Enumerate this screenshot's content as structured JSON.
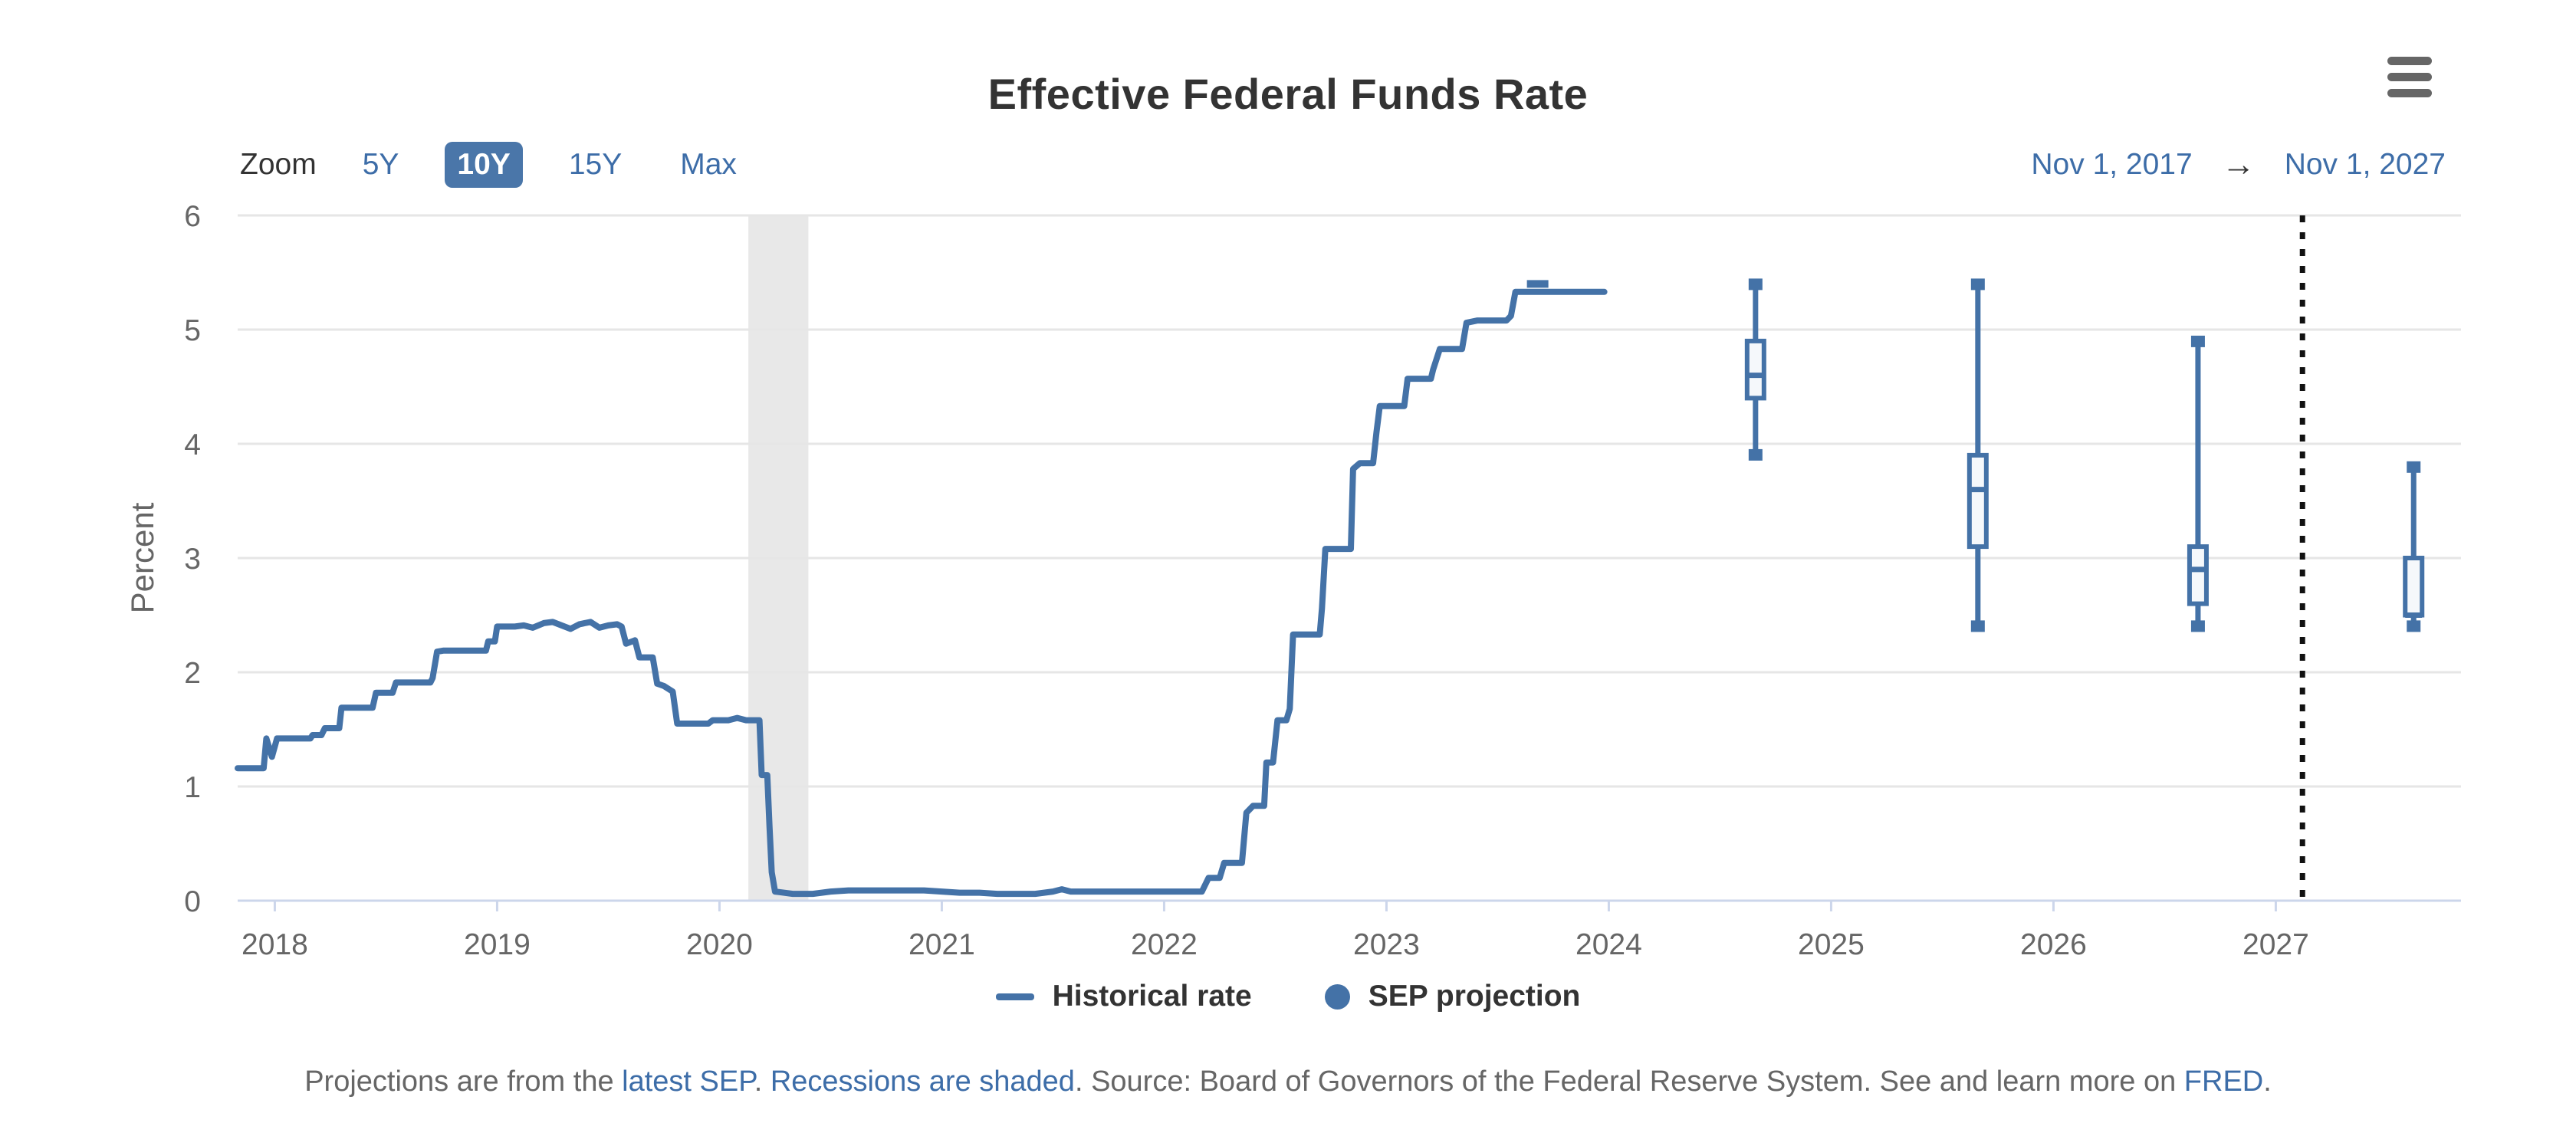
{
  "header": {
    "title": "Effective Federal Funds Rate",
    "menu_icon": "hamburger-icon"
  },
  "toolbar": {
    "zoom_label": "Zoom",
    "buttons": [
      {
        "label": "5Y",
        "selected": false
      },
      {
        "label": "10Y",
        "selected": true
      },
      {
        "label": "15Y",
        "selected": false
      },
      {
        "label": "Max",
        "selected": false
      }
    ],
    "range_from": "Nov 1, 2017",
    "range_arrow": "→",
    "range_to": "Nov 1, 2027"
  },
  "legend": {
    "items": [
      {
        "label": "Historical rate",
        "marker": "line"
      },
      {
        "label": "SEP projection",
        "marker": "circle"
      }
    ]
  },
  "footer": {
    "segments": [
      {
        "text": "Projections are from the ",
        "link": false
      },
      {
        "text": "latest SEP",
        "link": true
      },
      {
        "text": ". ",
        "link": false
      },
      {
        "text": "Recessions are shaded",
        "link": true
      },
      {
        "text": ". Source: Board of Governors of the Federal Reserve System. See and learn more on ",
        "link": false
      },
      {
        "text": "FRED",
        "link": true
      },
      {
        "text": ".",
        "link": false
      }
    ]
  },
  "colors": {
    "accent": "#4472a7",
    "link": "#3d6da8",
    "button_selected_bg": "#4a76a9",
    "text_dark": "#333333",
    "text_gray": "#666666",
    "gridline": "#e6e6e6",
    "axis": "#ccd6eb",
    "band": "#e8e8e8",
    "divider": "#111111",
    "box_fill": "#f5f8fb"
  },
  "chart_data": {
    "type": "line",
    "title": "Effective Federal Funds Rate",
    "ylabel": "Percent",
    "xlabel": "",
    "ylim": [
      0,
      6
    ],
    "yticks": [
      0,
      1,
      2,
      3,
      4,
      5,
      6
    ],
    "xlim": [
      2017.833,
      2027.833
    ],
    "xticks": [
      2018,
      2019,
      2020,
      2021,
      2022,
      2023,
      2024,
      2025,
      2026,
      2027
    ],
    "grid": true,
    "legend_position": "bottom",
    "recession_band": {
      "from": 2020.13,
      "to": 2020.4
    },
    "divider_x": 2027.12,
    "series": [
      {
        "name": "Historical rate",
        "type": "line",
        "points": [
          [
            2017.833,
            1.16
          ],
          [
            2017.95,
            1.16
          ],
          [
            2017.962,
            1.42
          ],
          [
            2017.987,
            1.26
          ],
          [
            2018.01,
            1.42
          ],
          [
            2018.16,
            1.42
          ],
          [
            2018.17,
            1.45
          ],
          [
            2018.21,
            1.45
          ],
          [
            2018.225,
            1.51
          ],
          [
            2018.29,
            1.51
          ],
          [
            2018.3,
            1.69
          ],
          [
            2018.44,
            1.69
          ],
          [
            2018.455,
            1.82
          ],
          [
            2018.53,
            1.82
          ],
          [
            2018.545,
            1.91
          ],
          [
            2018.7,
            1.91
          ],
          [
            2018.71,
            1.95
          ],
          [
            2018.73,
            2.18
          ],
          [
            2018.76,
            2.19
          ],
          [
            2018.95,
            2.19
          ],
          [
            2018.96,
            2.27
          ],
          [
            2018.99,
            2.27
          ],
          [
            2019.0,
            2.4
          ],
          [
            2019.04,
            2.4
          ],
          [
            2019.08,
            2.4
          ],
          [
            2019.12,
            2.41
          ],
          [
            2019.16,
            2.39
          ],
          [
            2019.21,
            2.43
          ],
          [
            2019.25,
            2.44
          ],
          [
            2019.29,
            2.41
          ],
          [
            2019.33,
            2.38
          ],
          [
            2019.37,
            2.42
          ],
          [
            2019.42,
            2.44
          ],
          [
            2019.46,
            2.39
          ],
          [
            2019.5,
            2.41
          ],
          [
            2019.54,
            2.42
          ],
          [
            2019.56,
            2.4
          ],
          [
            2019.58,
            2.25
          ],
          [
            2019.62,
            2.28
          ],
          [
            2019.64,
            2.13
          ],
          [
            2019.7,
            2.13
          ],
          [
            2019.72,
            1.9
          ],
          [
            2019.75,
            1.88
          ],
          [
            2019.79,
            1.83
          ],
          [
            2019.81,
            1.55
          ],
          [
            2019.88,
            1.55
          ],
          [
            2019.95,
            1.55
          ],
          [
            2019.97,
            1.58
          ],
          [
            2020.04,
            1.58
          ],
          [
            2020.08,
            1.6
          ],
          [
            2020.12,
            1.58
          ],
          [
            2020.18,
            1.58
          ],
          [
            2020.19,
            1.1
          ],
          [
            2020.215,
            1.1
          ],
          [
            2020.225,
            0.65
          ],
          [
            2020.235,
            0.25
          ],
          [
            2020.25,
            0.08
          ],
          [
            2020.33,
            0.06
          ],
          [
            2020.42,
            0.06
          ],
          [
            2020.5,
            0.08
          ],
          [
            2020.58,
            0.09
          ],
          [
            2020.67,
            0.09
          ],
          [
            2020.75,
            0.09
          ],
          [
            2020.83,
            0.09
          ],
          [
            2020.92,
            0.09
          ],
          [
            2021.0,
            0.08
          ],
          [
            2021.08,
            0.07
          ],
          [
            2021.17,
            0.07
          ],
          [
            2021.25,
            0.06
          ],
          [
            2021.33,
            0.06
          ],
          [
            2021.42,
            0.06
          ],
          [
            2021.5,
            0.08
          ],
          [
            2021.54,
            0.1
          ],
          [
            2021.58,
            0.08
          ],
          [
            2021.67,
            0.08
          ],
          [
            2021.75,
            0.08
          ],
          [
            2021.83,
            0.08
          ],
          [
            2021.92,
            0.08
          ],
          [
            2022.0,
            0.08
          ],
          [
            2022.08,
            0.08
          ],
          [
            2022.17,
            0.08
          ],
          [
            2022.2,
            0.2
          ],
          [
            2022.25,
            0.2
          ],
          [
            2022.27,
            0.33
          ],
          [
            2022.35,
            0.33
          ],
          [
            2022.37,
            0.77
          ],
          [
            2022.4,
            0.83
          ],
          [
            2022.45,
            0.83
          ],
          [
            2022.46,
            1.21
          ],
          [
            2022.49,
            1.21
          ],
          [
            2022.51,
            1.58
          ],
          [
            2022.55,
            1.58
          ],
          [
            2022.565,
            1.68
          ],
          [
            2022.58,
            2.33
          ],
          [
            2022.7,
            2.33
          ],
          [
            2022.71,
            2.56
          ],
          [
            2022.725,
            3.08
          ],
          [
            2022.84,
            3.08
          ],
          [
            2022.85,
            3.78
          ],
          [
            2022.88,
            3.83
          ],
          [
            2022.94,
            3.83
          ],
          [
            2022.955,
            4.1
          ],
          [
            2022.97,
            4.33
          ],
          [
            2023.08,
            4.33
          ],
          [
            2023.095,
            4.57
          ],
          [
            2023.2,
            4.57
          ],
          [
            2023.21,
            4.65
          ],
          [
            2023.24,
            4.83
          ],
          [
            2023.34,
            4.83
          ],
          [
            2023.36,
            5.06
          ],
          [
            2023.41,
            5.08
          ],
          [
            2023.54,
            5.08
          ],
          [
            2023.56,
            5.12
          ],
          [
            2023.58,
            5.33
          ],
          [
            2023.98,
            5.33
          ]
        ]
      },
      {
        "name": "SEP projection",
        "type": "boxplot",
        "boxes": [
          {
            "x": 2023.68,
            "low": 5.4,
            "q1": 5.4,
            "median": 5.4,
            "q3": 5.4,
            "high": 5.4
          },
          {
            "x": 2024.66,
            "low": 3.9,
            "q1": 4.4,
            "median": 4.6,
            "q3": 4.9,
            "high": 5.4
          },
          {
            "x": 2025.66,
            "low": 2.4,
            "q1": 3.1,
            "median": 3.6,
            "q3": 3.9,
            "high": 5.4
          },
          {
            "x": 2026.65,
            "low": 2.4,
            "q1": 2.6,
            "median": 2.9,
            "q3": 3.1,
            "high": 4.9
          },
          {
            "x": 2027.62,
            "low": 2.4,
            "q1": 2.5,
            "median": 2.5,
            "q3": 3.0,
            "high": 3.8
          }
        ]
      }
    ]
  }
}
